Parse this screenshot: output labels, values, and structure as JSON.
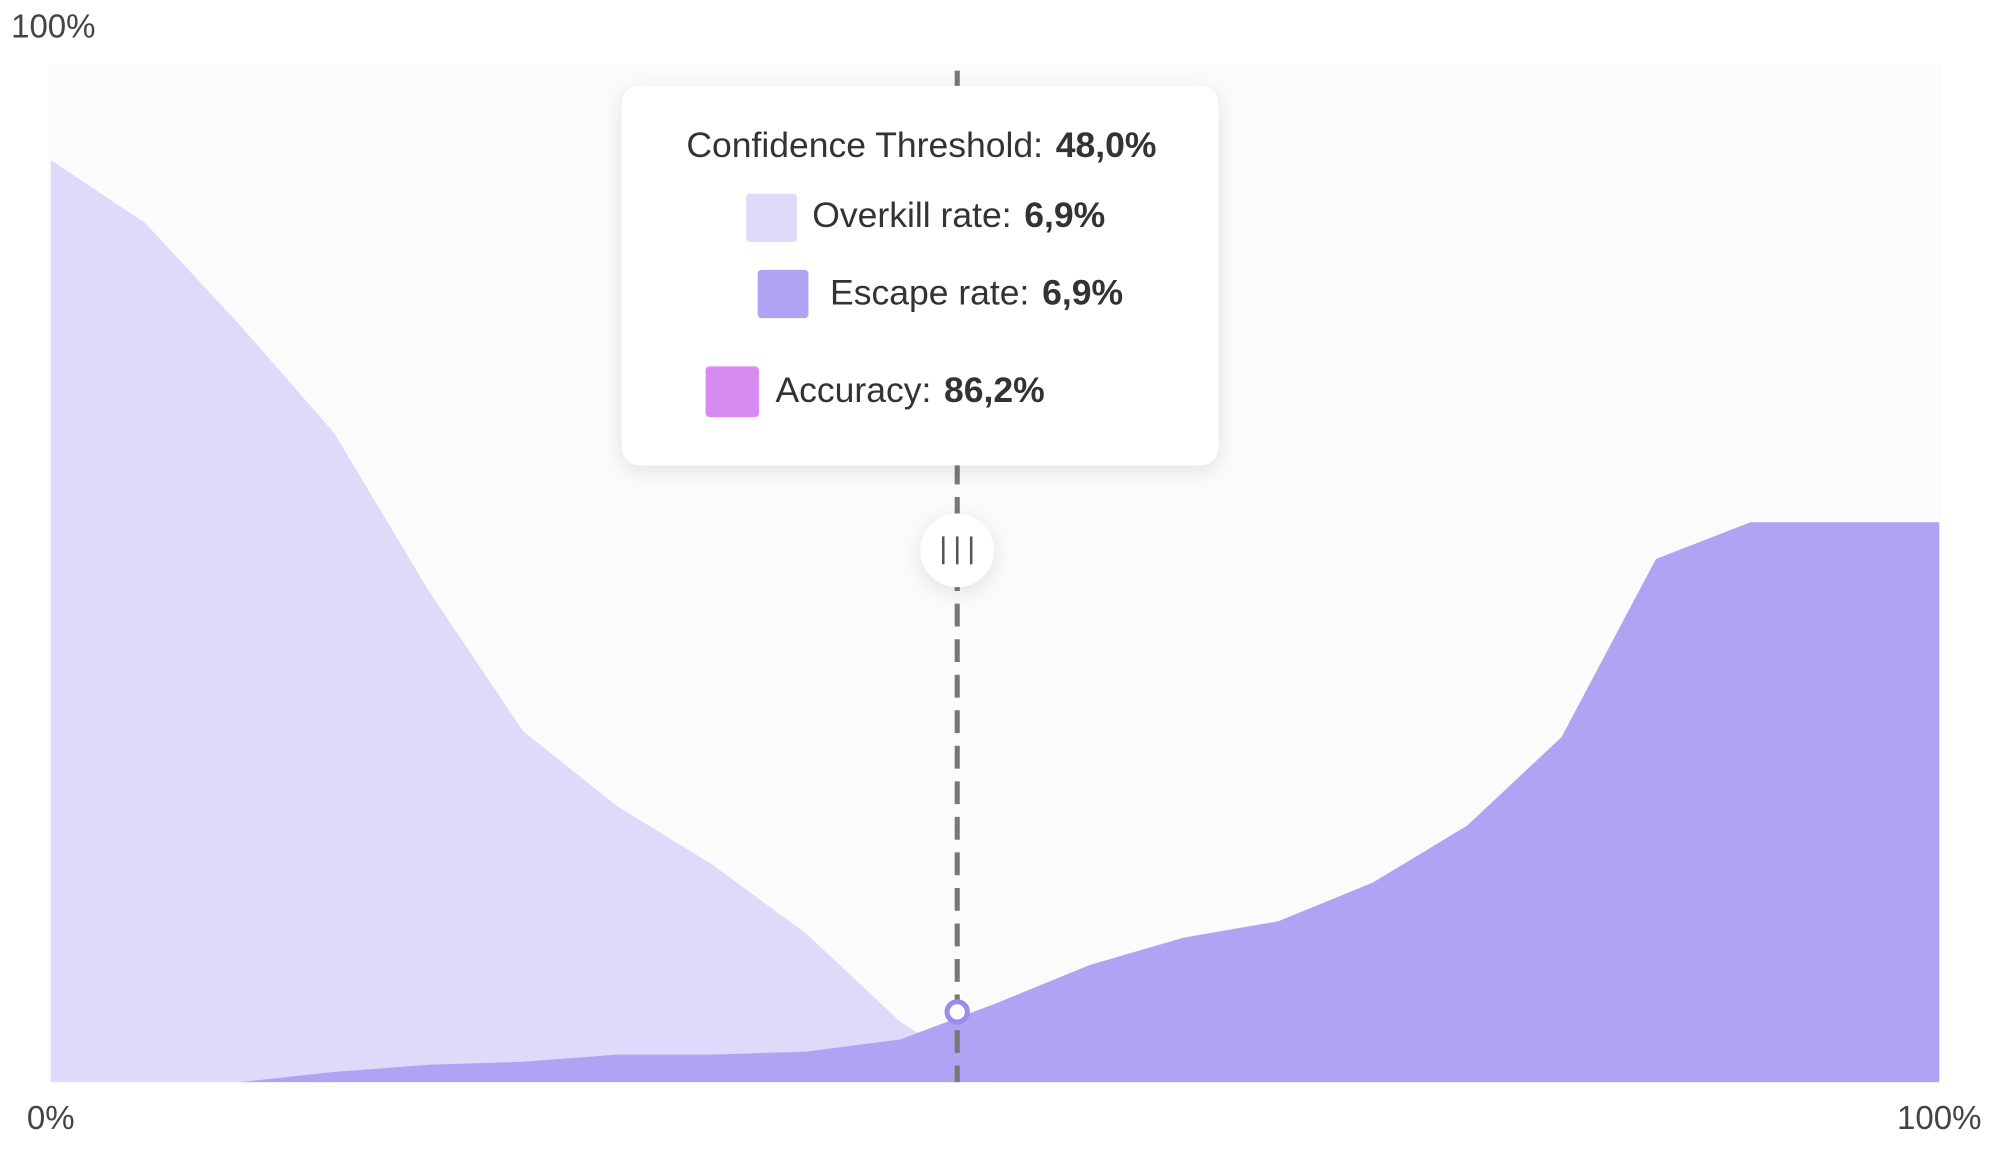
{
  "chart_data": {
    "type": "area",
    "x": [
      0,
      5,
      10,
      15,
      20,
      25,
      30,
      35,
      40,
      45,
      50,
      55,
      60,
      65,
      70,
      75,
      80,
      85,
      90,
      95,
      100
    ],
    "series": [
      {
        "name": "Overkill rate:",
        "color": "#dedafa",
        "values": [
          90.6,
          84.4,
          74.4,
          63.8,
          48.3,
          34.5,
          27.1,
          21.4,
          14.6,
          5.9,
          0,
          0,
          0,
          0,
          0,
          0,
          0,
          0,
          0,
          0,
          0
        ],
        "tooltip_value": 6.9,
        "tooltip_label": "6,9%"
      },
      {
        "name": "Escape rate:",
        "color": "#b0a3f3",
        "values": [
          0,
          0,
          0,
          1,
          1.7,
          2,
          2.7,
          2.7,
          3,
          4.2,
          7.7,
          11.5,
          14.2,
          15.8,
          19.6,
          25.2,
          33.9,
          51.4,
          55,
          55,
          55
        ],
        "tooltip_value": 6.9,
        "tooltip_label": "6,9%"
      }
    ],
    "threshold": {
      "label": "Confidence Threshold:",
      "value": 48,
      "value_label": "48,0%"
    },
    "accuracy": {
      "label": "Accuracy:",
      "value": 86.2,
      "value_label": "86,2%",
      "color": "#d98af0"
    },
    "xlim": [
      0,
      100
    ],
    "xticks": [
      {
        "value": 0,
        "label": "0%"
      },
      {
        "value": 100,
        "label": "100%"
      }
    ],
    "ylim": [
      0,
      100
    ],
    "yticks": [
      {
        "value": 100,
        "label": "100%"
      }
    ]
  }
}
